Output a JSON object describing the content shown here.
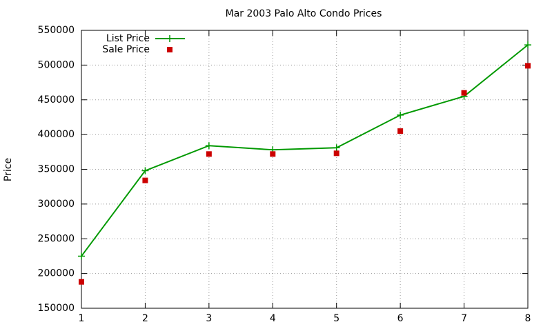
{
  "chart_data": {
    "type": "line",
    "title": "Mar 2003 Palo Alto Condo Prices",
    "y_label": "Price",
    "x": [
      1,
      2,
      3,
      4,
      5,
      6,
      7,
      8
    ],
    "series": [
      {
        "name": "List Price",
        "color": "#009900",
        "style": "linespoints",
        "marker": "plus",
        "values": [
          225000,
          348000,
          384000,
          378000,
          381000,
          428000,
          455000,
          529000
        ]
      },
      {
        "name": "Sale Price",
        "color": "#cc0000",
        "style": "points",
        "marker": "square",
        "values": [
          188000,
          334000,
          372000,
          372000,
          373000,
          405000,
          460000,
          499000
        ]
      }
    ],
    "xlim": [
      1,
      8
    ],
    "xticks": [
      1,
      2,
      3,
      4,
      5,
      6,
      7,
      8
    ],
    "ylim": [
      150000,
      550000
    ],
    "yticks": [
      150000,
      200000,
      250000,
      300000,
      350000,
      400000,
      450000,
      500000,
      550000
    ],
    "grid": true,
    "legend": "top-left"
  }
}
